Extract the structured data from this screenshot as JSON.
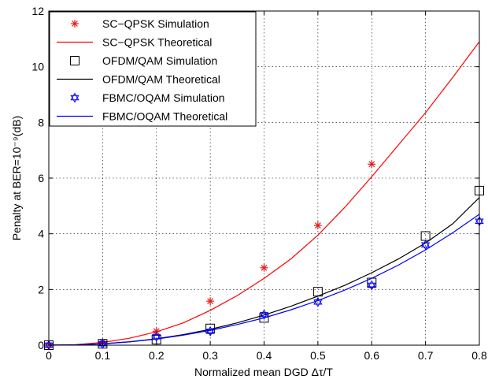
{
  "chart_data": {
    "type": "line",
    "xlabel": "Normalized mean DGD Δτ/T",
    "ylabel": "Penalty at BER=10⁻⁹(dB)",
    "xlim": [
      0,
      0.8
    ],
    "ylim": [
      0,
      12
    ],
    "xticks": [
      "0",
      "0.1",
      "0.2",
      "0.3",
      "0.4",
      "0.5",
      "0.6",
      "0.7",
      "0.8"
    ],
    "yticks": [
      "0",
      "2",
      "4",
      "6",
      "8",
      "10",
      "12"
    ],
    "grid": true,
    "legend_position": "top-left",
    "series": [
      {
        "name": "SC−QPSK Simulation",
        "kind": "markers",
        "marker": "star",
        "color": "#e41a1c",
        "points": [
          [
            0,
            0
          ],
          [
            0.1,
            0.1
          ],
          [
            0.2,
            0.5
          ],
          [
            0.3,
            1.58
          ],
          [
            0.4,
            2.78
          ],
          [
            0.5,
            4.3
          ],
          [
            0.6,
            6.5
          ]
        ]
      },
      {
        "name": "SC−QPSK Theoretical",
        "kind": "line",
        "color": "#ff0000",
        "points": [
          [
            0,
            0
          ],
          [
            0.05,
            0.02
          ],
          [
            0.1,
            0.1
          ],
          [
            0.15,
            0.25
          ],
          [
            0.2,
            0.48
          ],
          [
            0.25,
            0.8
          ],
          [
            0.3,
            1.25
          ],
          [
            0.35,
            1.78
          ],
          [
            0.4,
            2.4
          ],
          [
            0.45,
            3.1
          ],
          [
            0.5,
            3.95
          ],
          [
            0.55,
            4.95
          ],
          [
            0.6,
            6.05
          ],
          [
            0.65,
            7.2
          ],
          [
            0.7,
            8.35
          ],
          [
            0.75,
            9.6
          ],
          [
            0.8,
            10.9
          ]
        ]
      },
      {
        "name": "OFDM/QAM Simulation",
        "kind": "markers",
        "marker": "square",
        "color": "#000000",
        "points": [
          [
            0,
            0
          ],
          [
            0.1,
            0.05
          ],
          [
            0.2,
            0.2
          ],
          [
            0.3,
            0.6
          ],
          [
            0.4,
            0.98
          ],
          [
            0.5,
            1.92
          ],
          [
            0.6,
            2.25
          ],
          [
            0.7,
            3.92
          ],
          [
            0.8,
            5.55
          ]
        ]
      },
      {
        "name": "OFDM/QAM Theoretical",
        "kind": "line",
        "color": "#000000",
        "points": [
          [
            0,
            0
          ],
          [
            0.05,
            0.01
          ],
          [
            0.1,
            0.05
          ],
          [
            0.15,
            0.12
          ],
          [
            0.2,
            0.23
          ],
          [
            0.25,
            0.38
          ],
          [
            0.3,
            0.57
          ],
          [
            0.35,
            0.8
          ],
          [
            0.4,
            1.08
          ],
          [
            0.45,
            1.4
          ],
          [
            0.5,
            1.76
          ],
          [
            0.55,
            2.15
          ],
          [
            0.6,
            2.6
          ],
          [
            0.65,
            3.1
          ],
          [
            0.7,
            3.67
          ],
          [
            0.75,
            4.35
          ],
          [
            0.8,
            5.3
          ]
        ]
      },
      {
        "name": "FBMC/OQAM Simulation",
        "kind": "markers",
        "marker": "hexagram",
        "color": "#0000ff",
        "points": [
          [
            0,
            0
          ],
          [
            0.1,
            0.05
          ],
          [
            0.2,
            0.3
          ],
          [
            0.3,
            0.5
          ],
          [
            0.4,
            1.1
          ],
          [
            0.5,
            1.55
          ],
          [
            0.6,
            2.15
          ],
          [
            0.7,
            3.6
          ],
          [
            0.8,
            4.45
          ]
        ]
      },
      {
        "name": "FBMC/OQAM Theoretical",
        "kind": "line",
        "color": "#0000ff",
        "points": [
          [
            0,
            0
          ],
          [
            0.05,
            0.01
          ],
          [
            0.1,
            0.05
          ],
          [
            0.15,
            0.12
          ],
          [
            0.2,
            0.22
          ],
          [
            0.25,
            0.36
          ],
          [
            0.3,
            0.53
          ],
          [
            0.35,
            0.74
          ],
          [
            0.4,
            0.98
          ],
          [
            0.45,
            1.27
          ],
          [
            0.5,
            1.6
          ],
          [
            0.55,
            1.98
          ],
          [
            0.6,
            2.4
          ],
          [
            0.65,
            2.88
          ],
          [
            0.7,
            3.42
          ],
          [
            0.75,
            4.03
          ],
          [
            0.8,
            4.7
          ]
        ]
      }
    ]
  }
}
